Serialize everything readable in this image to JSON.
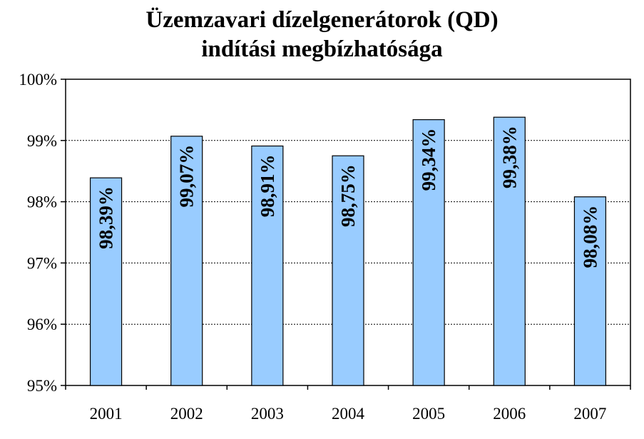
{
  "chart_data": {
    "type": "bar",
    "title": [
      "Üzemzavari dízelgenerátorok (QD)",
      "indítási megbízhatósága"
    ],
    "categories": [
      "2001",
      "2002",
      "2003",
      "2004",
      "2005",
      "2006",
      "2007"
    ],
    "values": [
      98.39,
      99.07,
      98.91,
      98.75,
      99.34,
      99.38,
      98.08
    ],
    "data_labels": [
      "98,39%",
      "99,07%",
      "98,91%",
      "98,75%",
      "99,34%",
      "99,38%",
      "98,08%"
    ],
    "yticks": [
      {
        "value": 100,
        "label": "100%"
      },
      {
        "value": 99,
        "label": "99%"
      },
      {
        "value": 98,
        "label": "98%"
      },
      {
        "value": 97,
        "label": "97%"
      },
      {
        "value": 96,
        "label": "96%"
      },
      {
        "value": 95,
        "label": "95%"
      }
    ],
    "ylim": [
      95,
      100
    ],
    "grid": true,
    "legend": "none",
    "colors": {
      "bar_fill": "#99CCFF",
      "bar_stroke": "#000000",
      "grid": "#000000"
    }
  }
}
